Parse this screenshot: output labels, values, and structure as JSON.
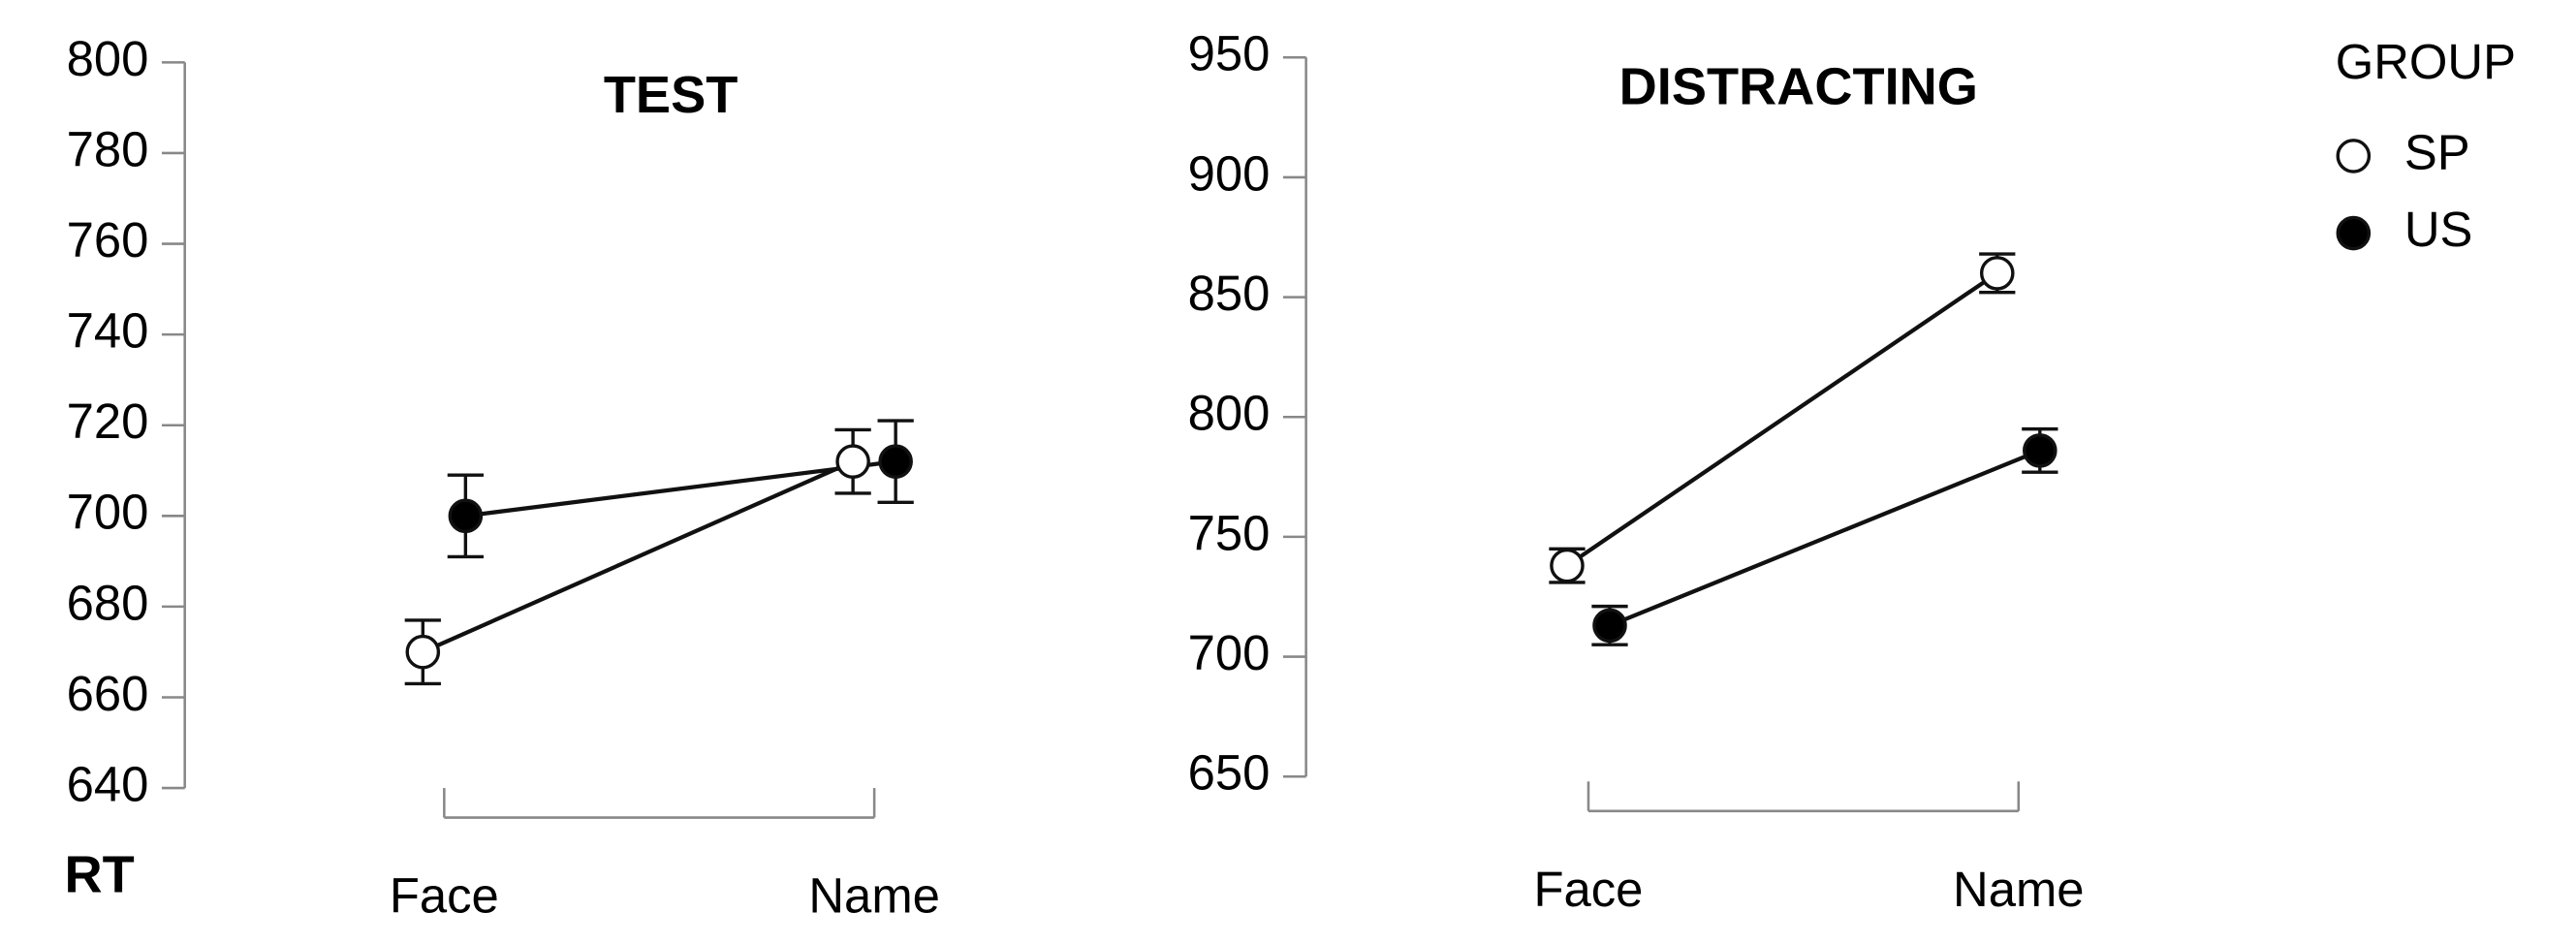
{
  "chart_data": [
    {
      "type": "line",
      "title": "TEST",
      "ylabel": "RT",
      "categories": [
        "Face",
        "Name"
      ],
      "ylim": [
        640,
        800
      ],
      "yticks": [
        640,
        660,
        680,
        700,
        720,
        740,
        760,
        780,
        800
      ],
      "series": [
        {
          "name": "SP",
          "color": "#ffffff",
          "values": [
            670,
            712
          ],
          "errors": [
            7,
            7
          ]
        },
        {
          "name": "US",
          "color": "#000000",
          "values": [
            700,
            712
          ],
          "errors": [
            9,
            9
          ]
        }
      ]
    },
    {
      "type": "line",
      "title": "DISTRACTING",
      "legend_title": "GROUP",
      "categories": [
        "Face",
        "Name"
      ],
      "ylim": [
        650,
        950
      ],
      "yticks": [
        650,
        700,
        750,
        800,
        850,
        900,
        950
      ],
      "series": [
        {
          "name": "SP",
          "color": "#ffffff",
          "values": [
            738,
            860
          ],
          "errors": [
            7,
            8
          ]
        },
        {
          "name": "US",
          "color": "#000000",
          "values": [
            713,
            786
          ],
          "errors": [
            8,
            9
          ]
        }
      ]
    }
  ]
}
